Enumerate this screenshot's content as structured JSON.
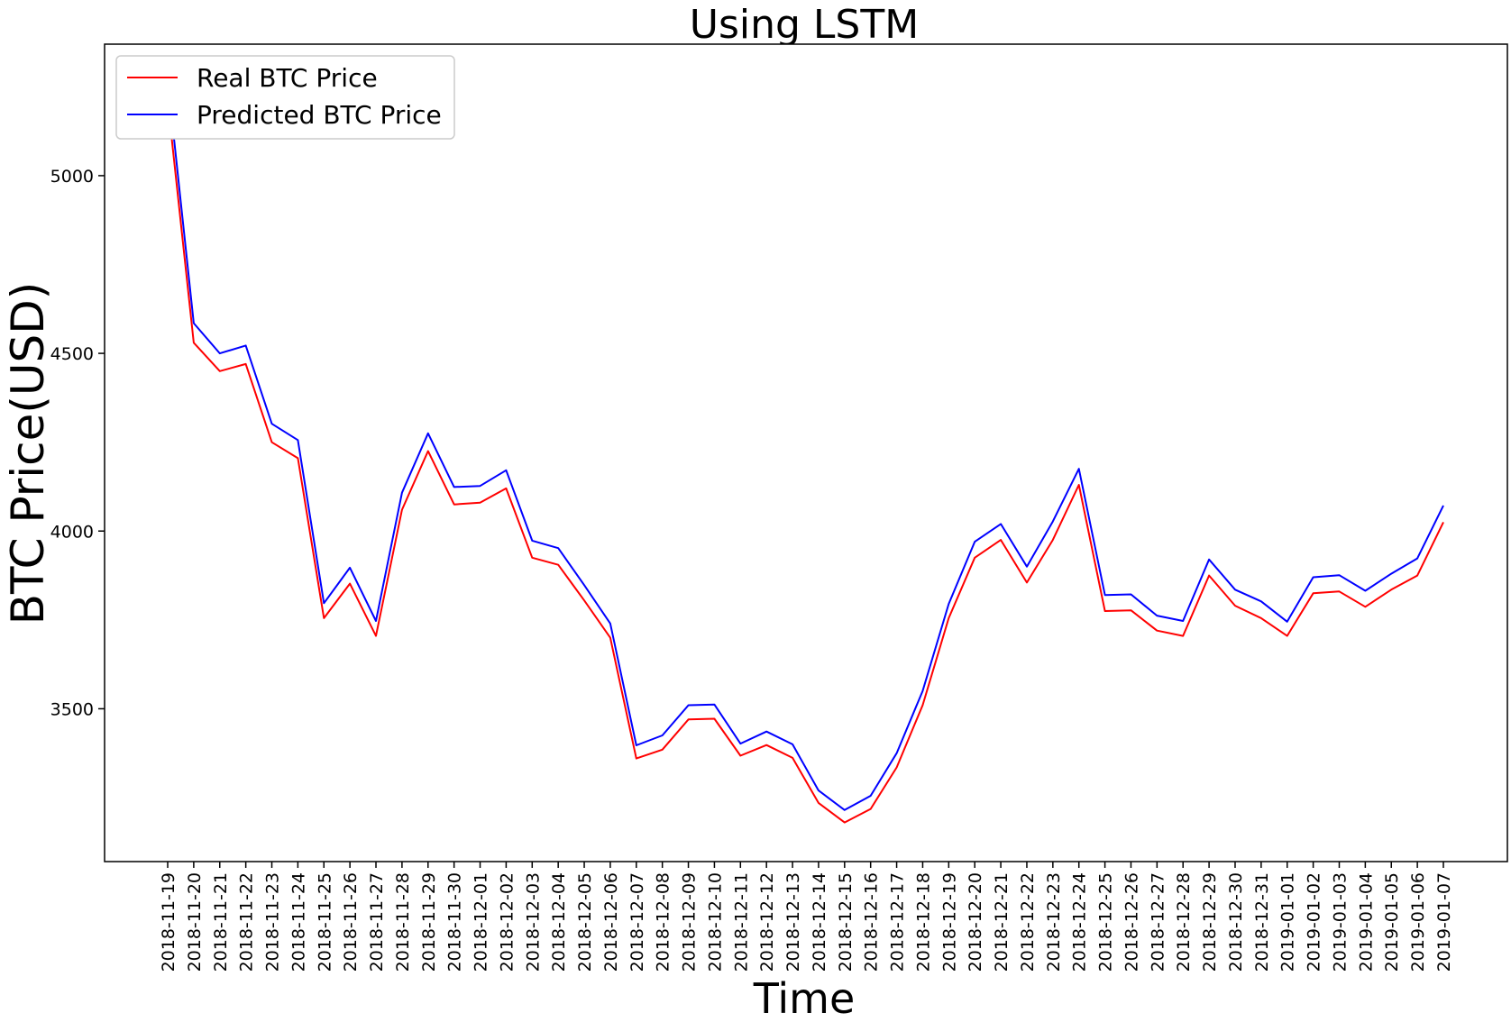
{
  "chart_data": {
    "type": "line",
    "title": "Using LSTM",
    "xlabel": "Time",
    "ylabel": "BTC Price(USD)",
    "categories": [
      "2018-11-19",
      "2018-11-20",
      "2018-11-21",
      "2018-11-22",
      "2018-11-23",
      "2018-11-24",
      "2018-11-25",
      "2018-11-26",
      "2018-11-27",
      "2018-11-28",
      "2018-11-29",
      "2018-11-30",
      "2018-12-01",
      "2018-12-02",
      "2018-12-03",
      "2018-12-04",
      "2018-12-05",
      "2018-12-06",
      "2018-12-07",
      "2018-12-08",
      "2018-12-09",
      "2018-12-10",
      "2018-12-11",
      "2018-12-12",
      "2018-12-13",
      "2018-12-14",
      "2018-12-15",
      "2018-12-16",
      "2018-12-17",
      "2018-12-18",
      "2018-12-19",
      "2018-12-20",
      "2018-12-21",
      "2018-12-22",
      "2018-12-23",
      "2018-12-24",
      "2018-12-25",
      "2018-12-26",
      "2018-12-27",
      "2018-12-28",
      "2018-12-29",
      "2018-12-30",
      "2018-12-31",
      "2019-01-01",
      "2019-01-02",
      "2019-01-03",
      "2019-01-04",
      "2019-01-05",
      "2019-01-06",
      "2019-01-07"
    ],
    "ylim": [
      3070,
      5370
    ],
    "yticks": [
      3500,
      4000,
      4500,
      5000
    ],
    "grid": false,
    "legend_position": "upper left",
    "series": [
      {
        "name": "Real BTC Price",
        "color": "#ff0000",
        "values": [
          5210,
          4530,
          4450,
          4470,
          4250,
          4205,
          3755,
          3852,
          3705,
          4060,
          4225,
          4075,
          4080,
          4120,
          3925,
          3905,
          3805,
          3700,
          3360,
          3385,
          3470,
          3472,
          3368,
          3398,
          3362,
          3235,
          3180,
          3218,
          3335,
          3510,
          3755,
          3925,
          3975,
          3855,
          3975,
          4130,
          3775,
          3777,
          3720,
          3705,
          3875,
          3790,
          3755,
          3705,
          3825,
          3830,
          3787,
          3835,
          3875,
          4025
        ]
      },
      {
        "name": "Predicted BTC Price",
        "color": "#0000ff",
        "values": [
          5270,
          4585,
          4500,
          4522,
          4302,
          4256,
          3797,
          3897,
          3747,
          4108,
          4275,
          4124,
          4127,
          4171,
          3973,
          3952,
          3848,
          3740,
          3397,
          3425,
          3510,
          3512,
          3402,
          3436,
          3400,
          3270,
          3215,
          3255,
          3375,
          3550,
          3795,
          3970,
          4020,
          3900,
          4027,
          4175,
          3820,
          3822,
          3762,
          3747,
          3920,
          3835,
          3802,
          3745,
          3870,
          3876,
          3832,
          3880,
          3923,
          4072
        ]
      }
    ]
  }
}
